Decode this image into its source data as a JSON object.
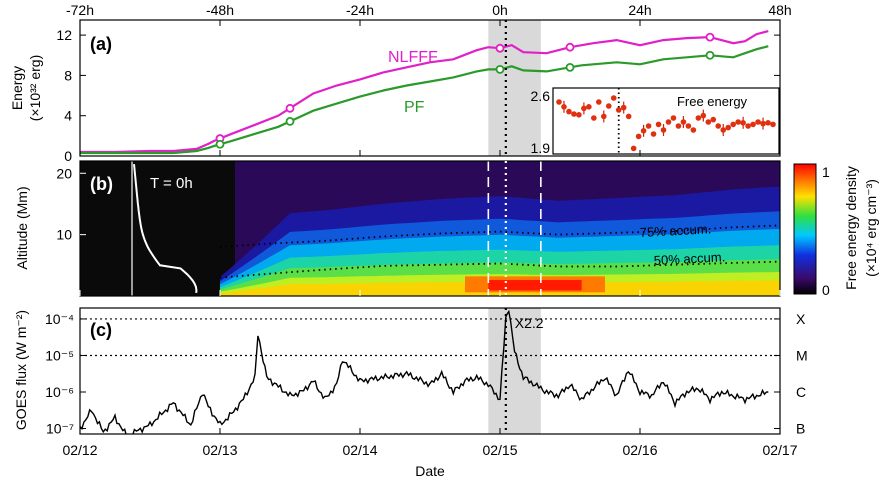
{
  "chart_data": [
    {
      "panel": "(a)",
      "type": "line",
      "top_axis_ticks": [
        "-72h",
        "-48h",
        "-24h",
        "0h",
        "24h",
        "48h"
      ],
      "top_axis_hours": [
        -72,
        -48,
        -24,
        0,
        24,
        48
      ],
      "ylabel": "Energy",
      "ylabel_unit": "(×10³² erg)",
      "ylim": [
        0,
        13.5
      ],
      "yticks": [
        0,
        4,
        8,
        12
      ],
      "series": [
        {
          "name": "NLFFF",
          "color": "#e020c8",
          "x_hours": [
            -72,
            -66,
            -60,
            -56,
            -52,
            -50,
            -49,
            -46,
            -42,
            -38,
            -35,
            -32,
            -28,
            -24,
            -20,
            -16,
            -12,
            -8,
            -4,
            -2,
            0,
            2,
            4,
            8,
            12,
            14,
            16,
            20,
            24,
            28,
            32,
            36,
            40,
            42,
            44,
            46
          ],
          "values": [
            0.4,
            0.4,
            0.5,
            0.5,
            0.7,
            1.2,
            1.5,
            2.2,
            3.1,
            4.0,
            5.1,
            6.2,
            7.0,
            7.6,
            8.3,
            8.8,
            9.3,
            9.6,
            10.5,
            10.8,
            10.7,
            11.0,
            10.3,
            10.2,
            10.8,
            11.0,
            11.2,
            11.5,
            11.0,
            11.5,
            11.7,
            11.8,
            11.2,
            11.4,
            12.1,
            12.4
          ]
        },
        {
          "name": "PF",
          "color": "#2a9a2a",
          "x_hours": [
            -72,
            -66,
            -60,
            -56,
            -52,
            -50,
            -49,
            -46,
            -42,
            -38,
            -35,
            -32,
            -28,
            -24,
            -20,
            -16,
            -12,
            -8,
            -4,
            -2,
            0,
            2,
            4,
            8,
            12,
            14,
            16,
            20,
            24,
            28,
            32,
            36,
            40,
            42,
            44,
            46
          ],
          "values": [
            0.3,
            0.3,
            0.3,
            0.3,
            0.5,
            0.8,
            1.0,
            1.5,
            2.2,
            2.9,
            3.7,
            4.5,
            5.2,
            5.9,
            6.5,
            7.0,
            7.4,
            7.8,
            8.4,
            8.6,
            8.6,
            8.9,
            8.5,
            8.4,
            8.8,
            9.0,
            9.1,
            9.3,
            9.1,
            9.6,
            9.8,
            10.0,
            9.8,
            10.2,
            10.6,
            10.9
          ]
        }
      ],
      "circle_markers_hours": [
        -48,
        -36,
        0,
        12,
        36
      ],
      "inset": {
        "title": "Free energy",
        "yticks": [
          "2.6",
          "1.9"
        ],
        "ylim": [
          1.9,
          2.6
        ],
        "x_hours": [
          -11,
          -10,
          -9,
          -8,
          -7,
          -6,
          -5,
          -4,
          -3,
          -2,
          -1,
          0,
          1,
          2,
          3,
          4,
          5,
          6,
          7,
          8,
          9,
          10,
          11,
          12,
          13,
          14,
          15,
          16,
          17,
          18,
          19,
          20,
          21,
          22,
          23,
          24,
          25,
          26,
          27,
          28,
          29,
          30,
          31,
          32
        ],
        "values": [
          2.5,
          2.44,
          2.38,
          2.35,
          2.34,
          2.42,
          2.44,
          2.3,
          2.5,
          2.32,
          2.45,
          2.55,
          2.4,
          2.43,
          2.32,
          1.92,
          2.07,
          2.14,
          2.2,
          2.1,
          2.22,
          2.15,
          2.25,
          2.3,
          2.2,
          2.25,
          2.2,
          2.15,
          2.3,
          2.33,
          2.25,
          2.28,
          2.2,
          2.15,
          2.18,
          2.22,
          2.25,
          2.24,
          2.2,
          2.22,
          2.25,
          2.23,
          2.24,
          2.22
        ],
        "vline_hours": 1
      }
    },
    {
      "panel": "(b)",
      "type": "heatmap",
      "ylabel": "Altitude (Mm)",
      "ylim": [
        0,
        22
      ],
      "yticks": [
        10,
        20
      ],
      "annotation": "T = 0h",
      "contours": [
        {
          "label": "75% accum.",
          "x_hours": [
            -48,
            -40,
            -30,
            -20,
            -10,
            0,
            10,
            20,
            30,
            40,
            48
          ],
          "values": [
            8.0,
            8.5,
            9.0,
            9.7,
            10.2,
            10.5,
            10.0,
            10.3,
            10.6,
            11.2,
            11.5
          ]
        },
        {
          "label": "50% accum.",
          "x_hours": [
            -48,
            -40,
            -30,
            -20,
            -10,
            0,
            10,
            20,
            30,
            40,
            48
          ],
          "values": [
            3.0,
            3.6,
            4.3,
            4.9,
            5.1,
            5.3,
            4.8,
            4.8,
            5.1,
            5.4,
            5.6
          ]
        }
      ],
      "colorbar": {
        "label": "Free energy density",
        "unit": "(×10⁴ erg cm⁻³)",
        "ticks": [
          "1",
          "0"
        ]
      }
    },
    {
      "panel": "(c)",
      "type": "line",
      "ylabel": "GOES flux (W m⁻²)",
      "yticks": [
        "10⁻⁴",
        "10⁻⁵",
        "10⁻⁶",
        "10⁻⁷"
      ],
      "yrange_log10": [
        -7.15,
        -3.7
      ],
      "class_labels": [
        "X",
        "M",
        "C",
        "B"
      ],
      "flare_label": "X2.2",
      "flare_x_hours": 1.5,
      "flare_log10": -3.7,
      "series": [
        {
          "name": "",
          "x_hours": [
            -72,
            -70,
            -68,
            -66,
            -64,
            -60,
            -56,
            -53,
            -51,
            -50,
            -48,
            -46,
            -44,
            -42,
            -41.5,
            -40,
            -36,
            -34,
            -32,
            -30,
            -28,
            -27,
            -24,
            -20,
            -16,
            -12,
            -10,
            -8,
            -6,
            -4,
            -2,
            0,
            1,
            1.5,
            2.5,
            4,
            6,
            8,
            10,
            12,
            14,
            16,
            18,
            20,
            22,
            24,
            26,
            28,
            30,
            32,
            34,
            36,
            38,
            40,
            42,
            44,
            46
          ],
          "log10": [
            -7.0,
            -6.5,
            -7.1,
            -6.7,
            -7.2,
            -6.9,
            -6.3,
            -6.9,
            -6.0,
            -6.4,
            -6.9,
            -6.6,
            -6.2,
            -5.6,
            -4.4,
            -5.6,
            -6.1,
            -6.0,
            -5.7,
            -6.2,
            -5.8,
            -5.1,
            -5.7,
            -5.6,
            -5.5,
            -5.8,
            -5.5,
            -6.0,
            -5.7,
            -5.6,
            -5.8,
            -6.2,
            -4.0,
            -3.7,
            -4.9,
            -5.6,
            -5.8,
            -6.0,
            -6.1,
            -5.8,
            -6.2,
            -5.9,
            -5.6,
            -6.1,
            -5.4,
            -6.0,
            -6.1,
            -5.7,
            -6.3,
            -6.0,
            -5.9,
            -6.2,
            -6.0,
            -6.1,
            -6.2,
            -6.1,
            -6.0
          ]
        }
      ],
      "hline_log10": [
        -4,
        -5
      ]
    }
  ],
  "xaxis": {
    "label": "Date",
    "tick_labels": [
      "02/12",
      "02/13",
      "02/14",
      "02/15",
      "02/16",
      "02/17"
    ],
    "tick_hours": [
      -72,
      -48,
      -24,
      0,
      24,
      48
    ],
    "xlim_hours": [
      -72,
      48
    ]
  },
  "reference_lines": {
    "shade_hours": [
      -2,
      7
    ],
    "dotted_vline_hours": 1
  }
}
